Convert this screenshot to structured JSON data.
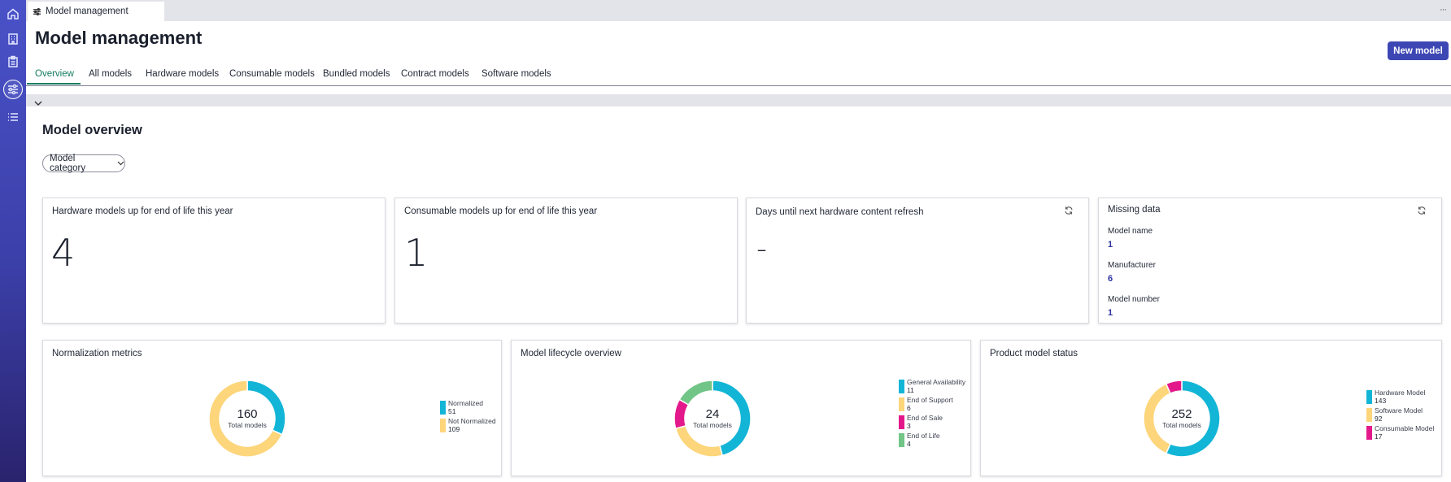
{
  "window": {
    "tab_title": "Model management",
    "more": "···"
  },
  "page": {
    "title": "Model management",
    "new_button": "New model"
  },
  "nav_tabs": [
    "Overview",
    "All models",
    "Hardware models",
    "Consumable models",
    "Bundled models",
    "Contract models",
    "Software models"
  ],
  "overview": {
    "heading": "Model overview",
    "filter_label": "Model category"
  },
  "kpis": [
    {
      "title": "Hardware models up for end of life this year",
      "value": "4"
    },
    {
      "title": "Consumable models up for end of life this year",
      "value": "1"
    },
    {
      "title": "Days until next hardware content refresh",
      "value": "-"
    }
  ],
  "missing_data": {
    "title": "Missing data",
    "items": [
      {
        "label": "Model name",
        "value": "1"
      },
      {
        "label": "Manufacturer",
        "value": "6"
      },
      {
        "label": "Model number",
        "value": "1"
      }
    ]
  },
  "chart_data": [
    {
      "type": "pie",
      "title": "Normalization metrics",
      "total": "160",
      "total_label": "Total models",
      "series": [
        {
          "name": "Normalized",
          "value": 51,
          "color": "#12b5d6"
        },
        {
          "name": "Not Normalized",
          "value": 109,
          "color": "#fdd57a"
        }
      ]
    },
    {
      "type": "pie",
      "title": "Model lifecycle overview",
      "total": "24",
      "total_label": "Total models",
      "series": [
        {
          "name": "General Availability",
          "value": 11,
          "color": "#12b5d6"
        },
        {
          "name": "End of Support",
          "value": 6,
          "color": "#fdd57a"
        },
        {
          "name": "End of Sale",
          "value": 3,
          "color": "#e3198b"
        },
        {
          "name": "End of Life",
          "value": 4,
          "color": "#71c586"
        }
      ]
    },
    {
      "type": "pie",
      "title": "Product model status",
      "total": "252",
      "total_label": "Total models",
      "series": [
        {
          "name": "Hardware Model",
          "value": 143,
          "color": "#12b5d6"
        },
        {
          "name": "Software Model",
          "value": 92,
          "color": "#fdd57a"
        },
        {
          "name": "Consumable Model",
          "value": 17,
          "color": "#e3198b"
        }
      ]
    }
  ],
  "icons": [
    "home-icon",
    "building-icon",
    "clipboard-icon",
    "sliders-icon",
    "list-icon",
    "refresh-icon",
    "chevron-down-icon"
  ]
}
